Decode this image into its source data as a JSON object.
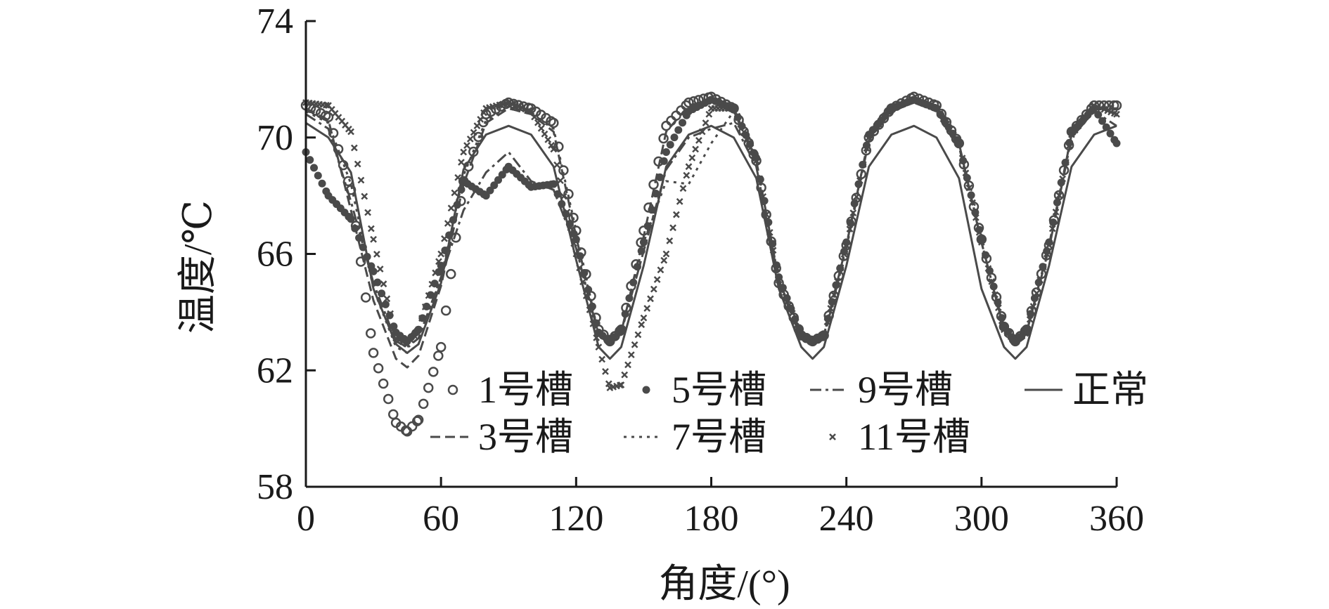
{
  "chart_data": {
    "type": "line",
    "title": "",
    "xlabel": "角度/(°)",
    "ylabel": "温度/℃",
    "xlim": [
      0,
      360
    ],
    "ylim": [
      58,
      74
    ],
    "xticks": [
      0,
      60,
      120,
      180,
      240,
      300,
      360
    ],
    "yticks": [
      58,
      62,
      66,
      70,
      74
    ],
    "grid": false,
    "legend_position": "bottom-center (inside plot)",
    "color": "#4a4a4a",
    "x": [
      0,
      10,
      20,
      30,
      40,
      45,
      50,
      60,
      70,
      80,
      90,
      100,
      110,
      120,
      130,
      135,
      140,
      150,
      160,
      170,
      180,
      190,
      200,
      210,
      220,
      225,
      230,
      240,
      250,
      260,
      270,
      280,
      290,
      300,
      310,
      315,
      320,
      330,
      340,
      350,
      360
    ],
    "series": [
      {
        "name": "1号槽",
        "marker": "open-circle",
        "values": [
          71.1,
          70.7,
          68.2,
          62.6,
          60.2,
          59.9,
          60.3,
          62.8,
          68.5,
          70.8,
          71.2,
          71.0,
          70.5,
          66.8,
          63.4,
          63.0,
          63.4,
          66.8,
          70.4,
          71.2,
          71.4,
          71.0,
          69.2,
          65.0,
          63.2,
          63.0,
          63.2,
          66.3,
          70.0,
          71.0,
          71.4,
          71.1,
          69.8,
          66.5,
          63.5,
          63.0,
          63.4,
          66.3,
          70.2,
          71.1,
          71.1
        ]
      },
      {
        "name": "5号槽",
        "marker": "filled-dot",
        "values": [
          69.5,
          68.0,
          67.2,
          65.4,
          63.3,
          63.0,
          63.4,
          65.6,
          68.5,
          68.0,
          69.0,
          68.3,
          68.4,
          66.5,
          63.3,
          63.0,
          63.4,
          66.4,
          69.5,
          70.9,
          71.3,
          71.0,
          69.3,
          65.2,
          63.2,
          63.0,
          63.2,
          66.4,
          70.1,
          71.0,
          71.3,
          71.0,
          69.8,
          66.5,
          63.5,
          63.0,
          63.4,
          66.4,
          70.2,
          71.0,
          69.8
        ]
      },
      {
        "name": "9号槽",
        "marker": "dash-dot",
        "values": [
          70.8,
          70.3,
          67.8,
          65.0,
          63.0,
          62.8,
          63.1,
          65.2,
          67.5,
          68.8,
          69.5,
          68.5,
          68.2,
          66.2,
          63.2,
          62.9,
          63.3,
          66.1,
          68.9,
          70.0,
          70.3,
          70.5,
          69.0,
          65.0,
          63.1,
          62.9,
          63.1,
          66.2,
          69.9,
          70.9,
          71.2,
          70.9,
          69.7,
          66.4,
          63.4,
          62.9,
          63.3,
          66.2,
          70.0,
          70.9,
          70.4
        ]
      },
      {
        "name": "正常",
        "marker": "solid",
        "values": [
          70.5,
          70.0,
          68.8,
          64.8,
          62.9,
          62.6,
          62.9,
          65.0,
          68.9,
          70.1,
          70.4,
          70.1,
          69.0,
          65.8,
          62.8,
          62.4,
          62.8,
          65.6,
          69.0,
          70.1,
          70.4,
          70.0,
          68.6,
          64.8,
          62.8,
          62.4,
          62.8,
          65.6,
          69.0,
          70.1,
          70.4,
          70.0,
          68.6,
          64.8,
          62.8,
          62.4,
          62.8,
          65.6,
          69.0,
          70.1,
          70.4
        ]
      },
      {
        "name": "3号槽",
        "marker": "dashed",
        "values": [
          71.0,
          70.6,
          67.5,
          64.4,
          62.4,
          62.1,
          62.5,
          64.9,
          68.4,
          70.5,
          71.0,
          70.8,
          70.2,
          66.6,
          63.2,
          62.9,
          63.3,
          66.6,
          70.2,
          71.1,
          71.3,
          71.0,
          69.2,
          65.1,
          63.2,
          62.9,
          63.2,
          66.3,
          70.0,
          71.0,
          71.3,
          71.0,
          69.8,
          66.4,
          63.4,
          62.9,
          63.3,
          66.3,
          70.1,
          71.0,
          71.0
        ]
      },
      {
        "name": "7号槽",
        "marker": "dotted",
        "values": [
          70.9,
          70.5,
          68.4,
          64.8,
          62.8,
          62.6,
          62.9,
          65.2,
          68.7,
          70.6,
          71.0,
          70.8,
          70.3,
          66.8,
          63.2,
          62.9,
          63.3,
          66.4,
          68.5,
          68.4,
          69.8,
          70.9,
          69.2,
          65.1,
          63.2,
          63.0,
          63.2,
          66.3,
          70.0,
          71.0,
          71.3,
          71.0,
          69.8,
          66.4,
          63.4,
          63.0,
          63.3,
          66.3,
          70.1,
          71.0,
          71.1
        ]
      },
      {
        "name": "11号槽",
        "marker": "cross",
        "values": [
          71.2,
          71.1,
          70.2,
          66.5,
          63.1,
          62.9,
          63.4,
          66.0,
          69.5,
          71.0,
          71.2,
          70.9,
          69.6,
          66.0,
          62.8,
          61.4,
          61.5,
          63.8,
          66.0,
          69.0,
          71.0,
          71.0,
          69.2,
          65.1,
          63.2,
          63.0,
          63.2,
          66.3,
          70.0,
          71.0,
          71.3,
          71.0,
          69.8,
          66.4,
          63.4,
          63.0,
          63.3,
          66.3,
          70.1,
          71.1,
          70.8
        ]
      }
    ]
  }
}
